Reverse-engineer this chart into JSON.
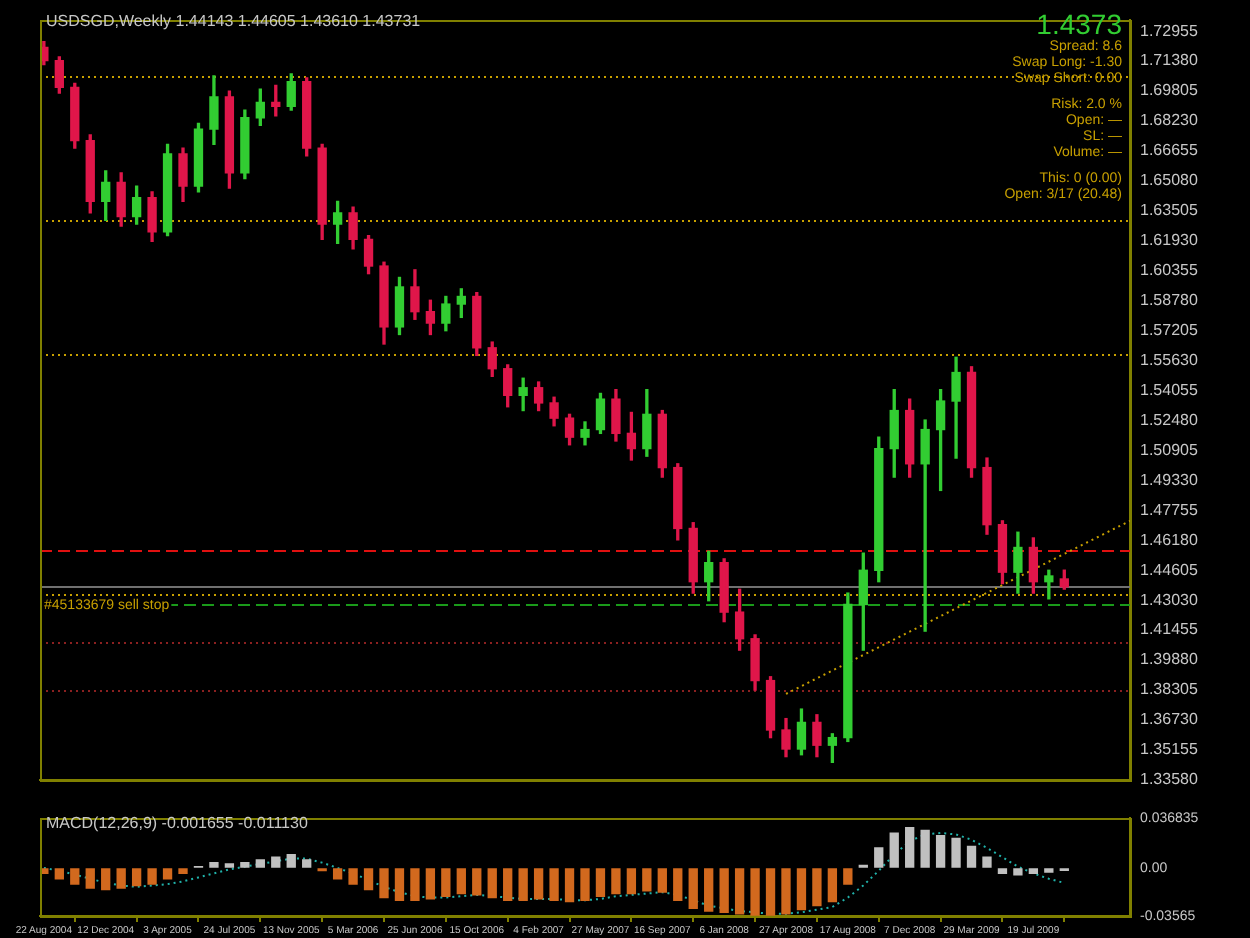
{
  "chart_data": [
    {
      "type": "candlestick",
      "title": "USDSGD,Weekly  1.44143 1.44605 1.43610 1.43731",
      "x": [
        "2004-08-22",
        "2004-09-19",
        "2004-10-17",
        "2004-11-14",
        "2004-12-12",
        "2005-01-09",
        "2005-02-06",
        "2005-03-06",
        "2005-04-03",
        "2005-05-01",
        "2005-05-29",
        "2005-06-26",
        "2005-07-24",
        "2005-08-21",
        "2005-09-18",
        "2005-10-16",
        "2005-11-13",
        "2005-12-11",
        "2006-01-08",
        "2006-02-05",
        "2006-03-05",
        "2006-04-02",
        "2006-04-30",
        "2006-05-28",
        "2006-06-25",
        "2006-07-23",
        "2006-08-20",
        "2006-09-17",
        "2006-10-15",
        "2006-11-12",
        "2006-12-10",
        "2007-01-07",
        "2007-02-04",
        "2007-03-04",
        "2007-04-01",
        "2007-04-29",
        "2007-05-27",
        "2007-06-24",
        "2007-07-22",
        "2007-08-19",
        "2007-09-16",
        "2007-10-14",
        "2007-11-11",
        "2007-12-09",
        "2008-01-06",
        "2008-02-03",
        "2008-03-02",
        "2008-03-30",
        "2008-04-27",
        "2008-05-25",
        "2008-06-22",
        "2008-07-20",
        "2008-08-17",
        "2008-09-14",
        "2008-10-12",
        "2008-11-09",
        "2008-12-07",
        "2009-01-04",
        "2009-02-01",
        "2009-03-01",
        "2009-03-29",
        "2009-04-26",
        "2009-05-24",
        "2009-06-21",
        "2009-07-19",
        "2009-08-16",
        "2009-09-13"
      ],
      "ohlc": [
        [
          1.721,
          1.724,
          1.712,
          1.714
        ],
        [
          1.714,
          1.716,
          1.697,
          1.7
        ],
        [
          1.7,
          1.702,
          1.668,
          1.672
        ],
        [
          1.672,
          1.675,
          1.634,
          1.64
        ],
        [
          1.64,
          1.656,
          1.63,
          1.65
        ],
        [
          1.65,
          1.655,
          1.627,
          1.632
        ],
        [
          1.632,
          1.648,
          1.628,
          1.642
        ],
        [
          1.642,
          1.645,
          1.619,
          1.624
        ],
        [
          1.624,
          1.67,
          1.622,
          1.665
        ],
        [
          1.665,
          1.668,
          1.64,
          1.648
        ],
        [
          1.648,
          1.681,
          1.645,
          1.678
        ],
        [
          1.678,
          1.706,
          1.67,
          1.695
        ],
        [
          1.695,
          1.698,
          1.647,
          1.655
        ],
        [
          1.655,
          1.688,
          1.652,
          1.684
        ],
        [
          1.684,
          1.699,
          1.68,
          1.692
        ],
        [
          1.692,
          1.701,
          1.685,
          1.69
        ],
        [
          1.69,
          1.707,
          1.688,
          1.703
        ],
        [
          1.703,
          1.705,
          1.664,
          1.668
        ],
        [
          1.668,
          1.67,
          1.62,
          1.628
        ],
        [
          1.628,
          1.64,
          1.618,
          1.634
        ],
        [
          1.634,
          1.637,
          1.615,
          1.62
        ],
        [
          1.62,
          1.622,
          1.602,
          1.606
        ],
        [
          1.606,
          1.608,
          1.565,
          1.574
        ],
        [
          1.574,
          1.6,
          1.57,
          1.595
        ],
        [
          1.595,
          1.604,
          1.578,
          1.582
        ],
        [
          1.582,
          1.588,
          1.57,
          1.576
        ],
        [
          1.576,
          1.59,
          1.572,
          1.586
        ],
        [
          1.586,
          1.594,
          1.579,
          1.59
        ],
        [
          1.59,
          1.592,
          1.559,
          1.563
        ],
        [
          1.563,
          1.566,
          1.548,
          1.552
        ],
        [
          1.552,
          1.554,
          1.532,
          1.538
        ],
        [
          1.538,
          1.547,
          1.53,
          1.542
        ],
        [
          1.542,
          1.545,
          1.53,
          1.534
        ],
        [
          1.534,
          1.537,
          1.522,
          1.526
        ],
        [
          1.526,
          1.528,
          1.512,
          1.516
        ],
        [
          1.516,
          1.524,
          1.512,
          1.52
        ],
        [
          1.52,
          1.539,
          1.518,
          1.536
        ],
        [
          1.536,
          1.541,
          1.514,
          1.518
        ],
        [
          1.518,
          1.529,
          1.504,
          1.51
        ],
        [
          1.51,
          1.541,
          1.506,
          1.528
        ],
        [
          1.528,
          1.53,
          1.495,
          1.5
        ],
        [
          1.5,
          1.502,
          1.462,
          1.468
        ],
        [
          1.468,
          1.471,
          1.434,
          1.44
        ],
        [
          1.44,
          1.456,
          1.43,
          1.45
        ],
        [
          1.45,
          1.452,
          1.419,
          1.424
        ],
        [
          1.424,
          1.436,
          1.404,
          1.41
        ],
        [
          1.41,
          1.412,
          1.383,
          1.388
        ],
        [
          1.388,
          1.39,
          1.358,
          1.362
        ],
        [
          1.362,
          1.368,
          1.348,
          1.352
        ],
        [
          1.352,
          1.373,
          1.349,
          1.366
        ],
        [
          1.366,
          1.37,
          1.348,
          1.354
        ],
        [
          1.354,
          1.36,
          1.345,
          1.358
        ],
        [
          1.358,
          1.434,
          1.356,
          1.428
        ],
        [
          1.428,
          1.455,
          1.404,
          1.446
        ],
        [
          1.446,
          1.516,
          1.44,
          1.51
        ],
        [
          1.51,
          1.541,
          1.495,
          1.53
        ],
        [
          1.53,
          1.536,
          1.495,
          1.502
        ],
        [
          1.502,
          1.525,
          1.414,
          1.52
        ],
        [
          1.52,
          1.541,
          1.488,
          1.535
        ],
        [
          1.535,
          1.558,
          1.505,
          1.55
        ],
        [
          1.55,
          1.553,
          1.495,
          1.5
        ],
        [
          1.5,
          1.505,
          1.465,
          1.47
        ],
        [
          1.47,
          1.472,
          1.439,
          1.445
        ],
        [
          1.445,
          1.466,
          1.434,
          1.458
        ],
        [
          1.458,
          1.463,
          1.434,
          1.44
        ],
        [
          1.44,
          1.446,
          1.431,
          1.443
        ],
        [
          1.44143,
          1.44605,
          1.4361,
          1.43731
        ]
      ],
      "colors": [
        "#e0164a",
        "#e0164a",
        "#e0164a",
        "#e0164a",
        "#32cd32",
        "#e0164a",
        "#32cd32",
        "#e0164a",
        "#32cd32",
        "#e0164a",
        "#32cd32",
        "#32cd32",
        "#e0164a",
        "#32cd32",
        "#32cd32",
        "#e0164a",
        "#32cd32",
        "#e0164a",
        "#e0164a",
        "#32cd32",
        "#e0164a",
        "#e0164a",
        "#e0164a",
        "#32cd32",
        "#e0164a",
        "#e0164a",
        "#32cd32",
        "#32cd32",
        "#e0164a",
        "#e0164a",
        "#e0164a",
        "#32cd32",
        "#e0164a",
        "#e0164a",
        "#e0164a",
        "#32cd32",
        "#32cd32",
        "#e0164a",
        "#e0164a",
        "#32cd32",
        "#e0164a",
        "#e0164a",
        "#e0164a",
        "#32cd32",
        "#e0164a",
        "#e0164a",
        "#e0164a",
        "#e0164a",
        "#e0164a",
        "#32cd32",
        "#e0164a",
        "#32cd32",
        "#32cd32",
        "#32cd32",
        "#32cd32",
        "#32cd32",
        "#e0164a",
        "#32cd32",
        "#32cd32",
        "#32cd32",
        "#e0164a",
        "#e0164a",
        "#e0164a",
        "#32cd32",
        "#e0164a",
        "#32cd32",
        "#e0164a"
      ],
      "series": [
        {
          "type": "line",
          "x": [
            "2008-04-27",
            "2010-01-10"
          ],
          "values": [
            1.381,
            1.472
          ],
          "color": "#c8a000",
          "line_style": "dotted"
        }
      ],
      "marker": "none",
      "xlim": [
        "2004-08-15",
        "2010-01-10"
      ],
      "ylim": [
        1.3355,
        1.7356
      ],
      "yticks": [
        {
          "value": 1.72955,
          "label": "1.72955"
        },
        {
          "value": 1.7138,
          "label": "1.71380"
        },
        {
          "value": 1.69805,
          "label": "1.69805"
        },
        {
          "value": 1.6823,
          "label": "1.68230"
        },
        {
          "value": 1.66655,
          "label": "1.66655"
        },
        {
          "value": 1.6508,
          "label": "1.65080"
        },
        {
          "value": 1.63505,
          "label": "1.63505"
        },
        {
          "value": 1.6193,
          "label": "1.61930"
        },
        {
          "value": 1.60355,
          "label": "1.60355"
        },
        {
          "value": 1.5878,
          "label": "1.58780"
        },
        {
          "value": 1.57205,
          "label": "1.57205"
        },
        {
          "value": 1.5563,
          "label": "1.55630"
        },
        {
          "value": 1.54055,
          "label": "1.54055"
        },
        {
          "value": 1.5248,
          "label": "1.52480"
        },
        {
          "value": 1.50905,
          "label": "1.50905"
        },
        {
          "value": 1.4933,
          "label": "1.49330"
        },
        {
          "value": 1.47755,
          "label": "1.47755"
        },
        {
          "value": 1.4618,
          "label": "1.46180"
        },
        {
          "value": 1.44605,
          "label": "1.44605"
        },
        {
          "value": 1.4303,
          "label": "1.43030"
        },
        {
          "value": 1.41455,
          "label": "1.41455"
        },
        {
          "value": 1.3988,
          "label": "1.39880"
        },
        {
          "value": 1.38305,
          "label": "1.38305"
        },
        {
          "value": 1.3673,
          "label": "1.36730"
        },
        {
          "value": 1.35155,
          "label": "1.35155"
        },
        {
          "value": 1.3358,
          "label": "1.33580"
        }
      ],
      "tick_labels": "y",
      "grid": false,
      "legend": false,
      "ref_lines": [
        {
          "axis": "y",
          "value": 1.706,
          "color": "#c8a000",
          "line_style": "dotted"
        },
        {
          "axis": "y",
          "value": 1.63,
          "color": "#c8a000",
          "line_style": "dotted"
        },
        {
          "axis": "y",
          "value": 1.56,
          "color": "#c8a000",
          "line_style": "dotted"
        },
        {
          "axis": "y",
          "value": 1.4565,
          "color": "#e01010",
          "line_style": "dashed"
        },
        {
          "axis": "y",
          "value": 1.4373,
          "color": "#707070",
          "line_style": "solid"
        },
        {
          "axis": "y",
          "value": 1.434,
          "label": "#45133679 sell stop",
          "color": "#c8a000",
          "line_style": "dotted"
        },
        {
          "axis": "y",
          "value": 1.428,
          "color": "#1a9a1a",
          "line_style": "dashed"
        },
        {
          "axis": "y",
          "value": 1.4088,
          "color": "#8b2020",
          "line_style": "dotted"
        },
        {
          "axis": "y",
          "value": 1.3834,
          "color": "#8b2020",
          "line_style": "dotted"
        }
      ],
      "annotations": [
        "1.4373",
        "Spread: 8.6",
        "Swap Long: -1.30",
        "Swap Short: 0.00",
        "Risk: 2.0 %",
        "Open: —",
        "SL: —",
        "Volume: —",
        "This: 0 (0.00)",
        "Open: 3/17 (20.48)"
      ]
    },
    {
      "type": "bar",
      "title": "MACD(12,26,9) -0.001655 -0.011130",
      "x": [
        "2004-08-22",
        "2004-09-19",
        "2004-10-17",
        "2004-11-14",
        "2004-12-12",
        "2005-01-09",
        "2005-02-06",
        "2005-03-06",
        "2005-04-03",
        "2005-05-01",
        "2005-05-29",
        "2005-06-26",
        "2005-07-24",
        "2005-08-21",
        "2005-09-18",
        "2005-10-16",
        "2005-11-13",
        "2005-12-11",
        "2006-01-08",
        "2006-02-05",
        "2006-03-05",
        "2006-04-02",
        "2006-04-30",
        "2006-05-28",
        "2006-06-25",
        "2006-07-23",
        "2006-08-20",
        "2006-09-17",
        "2006-10-15",
        "2006-11-12",
        "2006-12-10",
        "2007-01-07",
        "2007-02-04",
        "2007-03-04",
        "2007-04-01",
        "2007-04-29",
        "2007-05-27",
        "2007-06-24",
        "2007-07-22",
        "2007-08-19",
        "2007-09-16",
        "2007-10-14",
        "2007-11-11",
        "2007-12-09",
        "2008-01-06",
        "2008-02-03",
        "2008-03-02",
        "2008-03-30",
        "2008-04-27",
        "2008-05-25",
        "2008-06-22",
        "2008-07-20",
        "2008-08-17",
        "2008-09-14",
        "2008-10-12",
        "2008-11-09",
        "2008-12-07",
        "2009-01-04",
        "2009-02-01",
        "2009-03-01",
        "2009-03-29",
        "2009-04-26",
        "2009-05-24",
        "2009-06-21",
        "2009-07-19",
        "2009-08-16",
        "2009-09-13"
      ],
      "series": [
        {
          "type": "bar",
          "values": [
            -0.004,
            -0.008,
            -0.012,
            -0.015,
            -0.016,
            -0.015,
            -0.013,
            -0.012,
            -0.008,
            -0.004,
            0.001,
            0.004,
            0.003,
            0.004,
            0.006,
            0.008,
            0.01,
            0.006,
            -0.002,
            -0.008,
            -0.012,
            -0.016,
            -0.022,
            -0.024,
            -0.024,
            -0.023,
            -0.021,
            -0.019,
            -0.02,
            -0.022,
            -0.024,
            -0.024,
            -0.023,
            -0.024,
            -0.025,
            -0.024,
            -0.021,
            -0.019,
            -0.019,
            -0.017,
            -0.018,
            -0.024,
            -0.03,
            -0.032,
            -0.033,
            -0.034,
            -0.035,
            -0.035,
            -0.034,
            -0.031,
            -0.028,
            -0.025,
            -0.012,
            0.002,
            0.015,
            0.026,
            0.03,
            0.028,
            0.024,
            0.022,
            0.016,
            0.008,
            -0.004,
            -0.005,
            -0.004,
            -0.003,
            -0.001655
          ],
          "colors": [
            "#d2691e",
            "#d2691e",
            "#d2691e",
            "#d2691e",
            "#d2691e",
            "#d2691e",
            "#d2691e",
            "#d2691e",
            "#d2691e",
            "#d2691e",
            "#c0c0c0",
            "#c0c0c0",
            "#c0c0c0",
            "#c0c0c0",
            "#c0c0c0",
            "#c0c0c0",
            "#c0c0c0",
            "#c0c0c0",
            "#d2691e",
            "#d2691e",
            "#d2691e",
            "#d2691e",
            "#d2691e",
            "#d2691e",
            "#d2691e",
            "#d2691e",
            "#d2691e",
            "#d2691e",
            "#d2691e",
            "#d2691e",
            "#d2691e",
            "#d2691e",
            "#d2691e",
            "#d2691e",
            "#d2691e",
            "#d2691e",
            "#d2691e",
            "#d2691e",
            "#d2691e",
            "#d2691e",
            "#d2691e",
            "#d2691e",
            "#d2691e",
            "#d2691e",
            "#d2691e",
            "#d2691e",
            "#d2691e",
            "#d2691e",
            "#d2691e",
            "#d2691e",
            "#d2691e",
            "#d2691e",
            "#d2691e",
            "#c0c0c0",
            "#c0c0c0",
            "#c0c0c0",
            "#c0c0c0",
            "#c0c0c0",
            "#c0c0c0",
            "#c0c0c0",
            "#c0c0c0",
            "#c0c0c0",
            "#c0c0c0",
            "#c0c0c0",
            "#c0c0c0",
            "#c0c0c0",
            "#c0c0c0"
          ]
        },
        {
          "type": "line",
          "values": [
            0.0,
            -0.002,
            -0.005,
            -0.008,
            -0.011,
            -0.013,
            -0.014,
            -0.013,
            -0.012,
            -0.01,
            -0.007,
            -0.004,
            -0.001,
            0.001,
            0.003,
            0.005,
            0.007,
            0.007,
            0.004,
            0.0,
            -0.004,
            -0.009,
            -0.014,
            -0.018,
            -0.021,
            -0.022,
            -0.022,
            -0.021,
            -0.02,
            -0.021,
            -0.022,
            -0.023,
            -0.023,
            -0.023,
            -0.024,
            -0.024,
            -0.023,
            -0.021,
            -0.02,
            -0.019,
            -0.018,
            -0.02,
            -0.024,
            -0.028,
            -0.03,
            -0.032,
            -0.033,
            -0.034,
            -0.034,
            -0.033,
            -0.031,
            -0.029,
            -0.022,
            -0.013,
            -0.002,
            0.01,
            0.02,
            0.025,
            0.026,
            0.025,
            0.021,
            0.015,
            0.008,
            0.001,
            -0.004,
            -0.008,
            -0.01113
          ],
          "color": "#20b2aa",
          "line_style": "dotted"
        }
      ],
      "marker": "none",
      "xlim": [
        "2004-08-15",
        "2010-01-10"
      ],
      "xticks": [
        {
          "value": "2004-08-22",
          "label": "22 Aug 2004"
        },
        {
          "value": "2004-12-12",
          "label": "12 Dec 2004"
        },
        {
          "value": "2005-04-03",
          "label": "3 Apr 2005"
        },
        {
          "value": "2005-07-24",
          "label": "24 Jul 2005"
        },
        {
          "value": "2005-11-13",
          "label": "13 Nov 2005"
        },
        {
          "value": "2006-03-05",
          "label": "5 Mar 2006"
        },
        {
          "value": "2006-06-25",
          "label": "25 Jun 2006"
        },
        {
          "value": "2006-10-15",
          "label": "15 Oct 2006"
        },
        {
          "value": "2007-02-04",
          "label": "4 Feb 2007"
        },
        {
          "value": "2007-05-27",
          "label": "27 May 2007"
        },
        {
          "value": "2007-09-16",
          "label": "16 Sep 2007"
        },
        {
          "value": "2008-01-06",
          "label": "6 Jan 2008"
        },
        {
          "value": "2008-04-27",
          "label": "27 Apr 2008"
        },
        {
          "value": "2008-08-17",
          "label": "17 Aug 2008"
        },
        {
          "value": "2008-12-07",
          "label": "7 Dec 2008"
        },
        {
          "value": "2009-03-29",
          "label": "29 Mar 2009"
        },
        {
          "value": "2009-07-19",
          "label": "19 Jul 2009"
        }
      ],
      "ylim": [
        -0.0357,
        0.0369
      ],
      "yticks": [
        {
          "value": 0.036835,
          "label": "0.036835"
        },
        {
          "value": 0,
          "label": "0.00"
        },
        {
          "value": -0.03565,
          "label": "-0.03565"
        }
      ],
      "grid": false,
      "legend": false
    }
  ]
}
